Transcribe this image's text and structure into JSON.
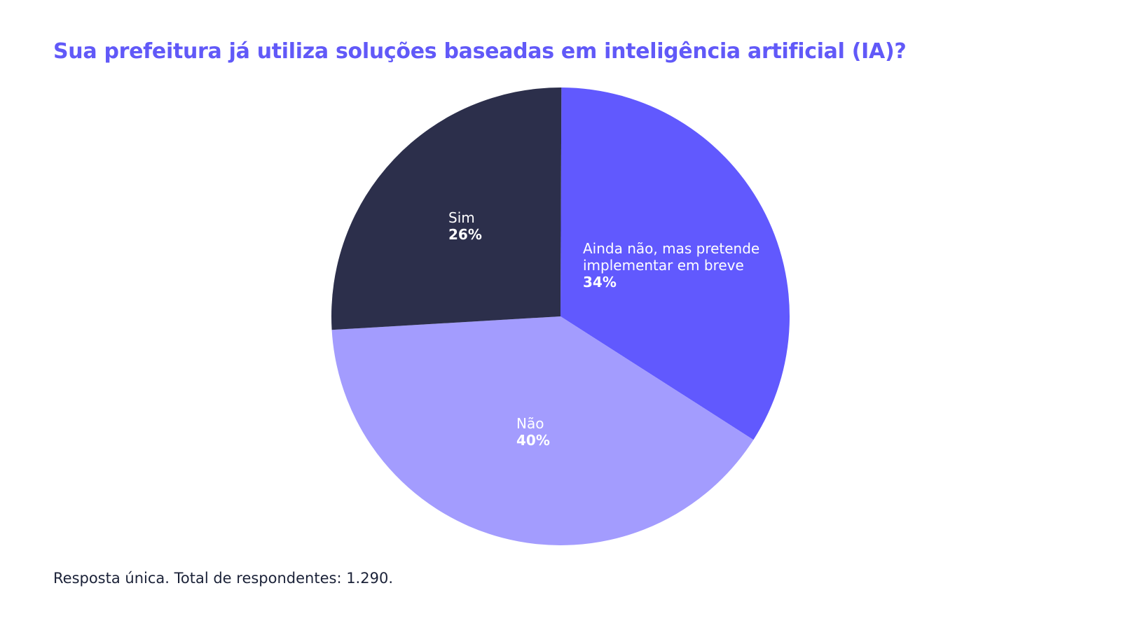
{
  "title": "Sua prefeitura já utiliza soluções baseadas em inteligência artificial (IA)?",
  "footnote": "Resposta única. Total de respondentes: 1.290.",
  "chart_data": {
    "type": "pie",
    "title": "Sua prefeitura já utiliza soluções baseadas em inteligência artificial (IA)?",
    "categories": [
      "Ainda não, mas pretende implementar em breve",
      "Não",
      "Sim"
    ],
    "values": [
      34,
      40,
      26
    ],
    "unit": "%",
    "slices": [
      {
        "label_lines": [
          "Ainda não, mas pretende",
          "implementar em breve"
        ],
        "value": 34,
        "value_label": "34%",
        "color": "#6159fe"
      },
      {
        "label_lines": [
          "Não"
        ],
        "value": 40,
        "value_label": "40%",
        "color": "#a39cfe"
      },
      {
        "label_lines": [
          "Sim"
        ],
        "value": 26,
        "value_label": "26%",
        "color": "#2c2f4b"
      }
    ],
    "start_angle": "12 o'clock",
    "direction": "clockwise",
    "legend": "none"
  }
}
